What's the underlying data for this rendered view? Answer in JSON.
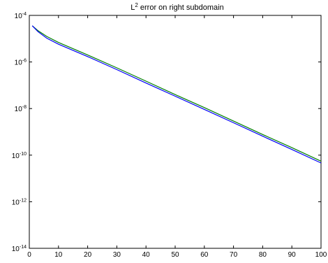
{
  "chart_data": {
    "type": "line",
    "title_base": "L",
    "title_sup": "2",
    "title_rest": " error on right subdomain",
    "xlabel": "",
    "ylabel": "",
    "xlim": [
      0,
      100
    ],
    "ylim": [
      1e-14,
      0.0001
    ],
    "y_scale": "log",
    "grid": false,
    "x_ticks": [
      "0",
      "10",
      "20",
      "30",
      "40",
      "50",
      "60",
      "70",
      "80",
      "90",
      "100"
    ],
    "y_ticks": [
      {
        "base": "10",
        "exp": "-4"
      },
      {
        "base": "10",
        "exp": "-6"
      },
      {
        "base": "10",
        "exp": "-8"
      },
      {
        "base": "10",
        "exp": "-10"
      },
      {
        "base": "10",
        "exp": "-12"
      },
      {
        "base": "10",
        "exp": "-14"
      }
    ],
    "series": [
      {
        "color": "#008000",
        "x": [
          1,
          3,
          6,
          10,
          20,
          30,
          40,
          50,
          60,
          70,
          80,
          90,
          100
        ],
        "y": [
          3.6e-05,
          2.2e-05,
          1.25e-05,
          6.9e-06,
          2e-06,
          5.6e-07,
          1.5e-07,
          4e-08,
          1.1e-08,
          2.9e-09,
          7.7e-10,
          2.1e-10,
          5.5e-11
        ]
      },
      {
        "color": "#0000ff",
        "x": [
          1,
          3,
          6,
          10,
          20,
          30,
          40,
          50,
          60,
          70,
          80,
          90,
          100
        ],
        "y": [
          3.6e-05,
          2e-05,
          1.05e-05,
          5.8e-06,
          1.7e-06,
          4.7e-07,
          1.25e-07,
          3.4e-08,
          9.2e-09,
          2.45e-09,
          6.5e-10,
          1.75e-10,
          4.6e-11
        ]
      }
    ]
  }
}
